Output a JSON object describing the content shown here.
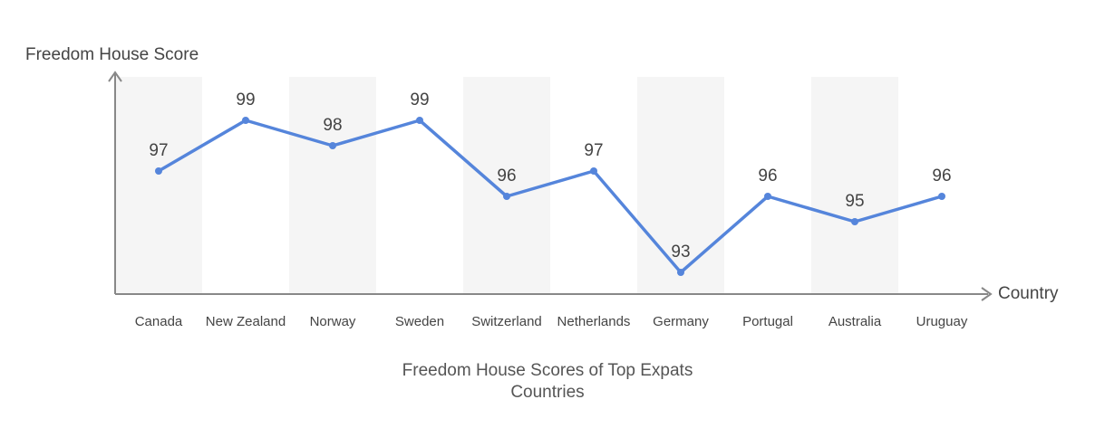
{
  "chart_data": {
    "type": "line",
    "title_lines": [
      "Freedom House Scores of Top Expats",
      "Countries"
    ],
    "xlabel": "Country",
    "ylabel": "Freedom House Score",
    "categories": [
      "Canada",
      "New Zealand",
      "Norway",
      "Sweden",
      "Switzerland",
      "Netherlands",
      "Germany",
      "Portugal",
      "Australia",
      "Uruguay"
    ],
    "series": [
      {
        "values": [
          97,
          99,
          98,
          99,
          96,
          97,
          93,
          96,
          95,
          96
        ]
      }
    ],
    "ylim": [
      91.3,
      101.3
    ],
    "data_labels": true,
    "alternating_bands": true,
    "grid": false,
    "legend": "none"
  },
  "colors": {
    "line": "#5585db",
    "band": "#f5f5f5",
    "axis": "#888888",
    "label_text": "#444444",
    "tick_text": "#444444",
    "title_text": "#555555"
  }
}
